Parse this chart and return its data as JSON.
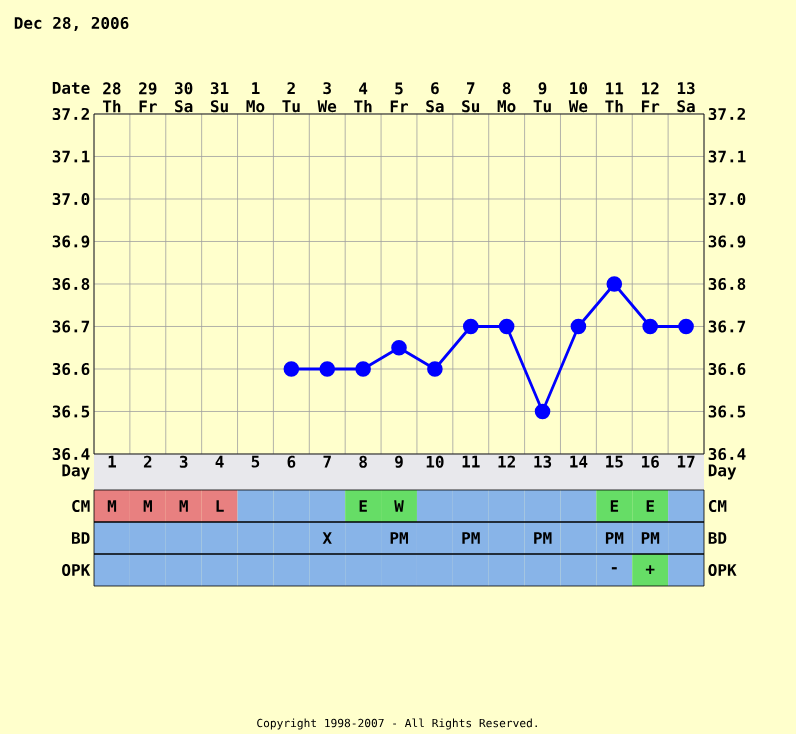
{
  "chart_data": [
    {
      "type": "line",
      "title": "Dec 28, 2006",
      "xlabel": "Day",
      "x2label": "Date",
      "categories": [
        "1",
        "2",
        "3",
        "4",
        "5",
        "6",
        "7",
        "8",
        "9",
        "10",
        "11",
        "12",
        "13",
        "14",
        "15",
        "16",
        "17"
      ],
      "x2lim": [
        "2006-12-27T12:00",
        "2007-01-13T12:00"
      ],
      "x2ticks": [
        {
          "value": "2006-12-28",
          "label": "28 Th"
        },
        {
          "value": "2006-12-29",
          "label": "29 Fr"
        },
        {
          "value": "2006-12-30",
          "label": "30 Sa"
        },
        {
          "value": "2006-12-31",
          "label": "31 Su"
        },
        {
          "value": "2007-01-01",
          "label": "1 Mo"
        },
        {
          "value": "2007-01-02",
          "label": "2 Tu"
        },
        {
          "value": "2007-01-03",
          "label": "3 We"
        },
        {
          "value": "2007-01-04",
          "label": "4 Th"
        },
        {
          "value": "2007-01-05",
          "label": "5 Fr"
        },
        {
          "value": "2007-01-06",
          "label": "6 Sa"
        },
        {
          "value": "2007-01-07",
          "label": "7 Su"
        },
        {
          "value": "2007-01-08",
          "label": "8 Mo"
        },
        {
          "value": "2007-01-09",
          "label": "9 Tu"
        },
        {
          "value": "2007-01-10",
          "label": "10 We"
        },
        {
          "value": "2007-01-11",
          "label": "11 Th"
        },
        {
          "value": "2007-01-12",
          "label": "12 Fr"
        },
        {
          "value": "2007-01-13",
          "label": "13 Sa"
        }
      ],
      "ylim": [
        36.4,
        37.2
      ],
      "yticks": [
        {
          "value": 36.4,
          "label": "36.4"
        },
        {
          "value": 36.5,
          "label": "36.5"
        },
        {
          "value": 36.6,
          "label": "36.6"
        },
        {
          "value": 36.7,
          "label": "36.7"
        },
        {
          "value": 36.8,
          "label": "36.8"
        },
        {
          "value": 36.9,
          "label": "36.9"
        },
        {
          "value": 37.0,
          "label": "37.0"
        },
        {
          "value": 37.1,
          "label": "37.1"
        },
        {
          "value": 37.2,
          "label": "37.2"
        }
      ],
      "y2lim": [
        36.4,
        37.2
      ],
      "y2ticks": [
        {
          "value": 36.4,
          "label": "36.4"
        },
        {
          "value": 36.5,
          "label": "36.5"
        },
        {
          "value": 36.6,
          "label": "36.6"
        },
        {
          "value": 36.7,
          "label": "36.7"
        },
        {
          "value": 36.8,
          "label": "36.8"
        },
        {
          "value": 36.9,
          "label": "36.9"
        },
        {
          "value": 37.0,
          "label": "37.0"
        },
        {
          "value": 37.1,
          "label": "37.1"
        },
        {
          "value": 37.2,
          "label": "37.2"
        }
      ],
      "grid": true,
      "marker": "circle",
      "line_style": "solid",
      "series": [
        {
          "color": "#0000ff",
          "values": [
            null,
            null,
            null,
            null,
            null,
            36.6,
            36.6,
            36.6,
            36.65,
            36.6,
            36.7,
            36.7,
            36.5,
            36.7,
            36.8,
            36.7,
            36.7
          ]
        }
      ],
      "annotations": [
        "Copyright 1998-2007 - All Rights Reserved."
      ]
    },
    {
      "type": "other",
      "y_categories": [
        "CM",
        "BD",
        "OPK"
      ],
      "y2_categories": [
        "CM",
        "BD",
        "OPK"
      ],
      "colors": [
        [
          "#e88080",
          "#e88080",
          "#e88080",
          "#e88080",
          "#88b4e8",
          "#88b4e8",
          "#88b4e8",
          "#66dd66",
          "#66dd66",
          "#88b4e8",
          "#88b4e8",
          "#88b4e8",
          "#88b4e8",
          "#88b4e8",
          "#66dd66",
          "#66dd66",
          "#88b4e8"
        ],
        [
          "#88b4e8",
          "#88b4e8",
          "#88b4e8",
          "#88b4e8",
          "#88b4e8",
          "#88b4e8",
          "#88b4e8",
          "#88b4e8",
          "#88b4e8",
          "#88b4e8",
          "#88b4e8",
          "#88b4e8",
          "#88b4e8",
          "#88b4e8",
          "#88b4e8",
          "#88b4e8",
          "#88b4e8"
        ],
        [
          "#88b4e8",
          "#88b4e8",
          "#88b4e8",
          "#88b4e8",
          "#88b4e8",
          "#88b4e8",
          "#88b4e8",
          "#88b4e8",
          "#88b4e8",
          "#88b4e8",
          "#88b4e8",
          "#88b4e8",
          "#88b4e8",
          "#88b4e8",
          "#88b4e8",
          "#66dd66",
          "#88b4e8"
        ]
      ],
      "cell_labels": [
        [
          "M",
          "M",
          "M",
          "L",
          null,
          null,
          null,
          "E",
          "W",
          null,
          null,
          null,
          null,
          null,
          "E",
          "E",
          null
        ],
        [
          null,
          null,
          null,
          null,
          null,
          null,
          "X",
          null,
          "PM",
          null,
          "PM",
          null,
          "PM",
          null,
          "PM",
          "PM",
          null
        ],
        [
          null,
          null,
          null,
          null,
          null,
          null,
          null,
          null,
          null,
          null,
          null,
          null,
          null,
          null,
          "-",
          "+",
          null
        ]
      ]
    }
  ]
}
